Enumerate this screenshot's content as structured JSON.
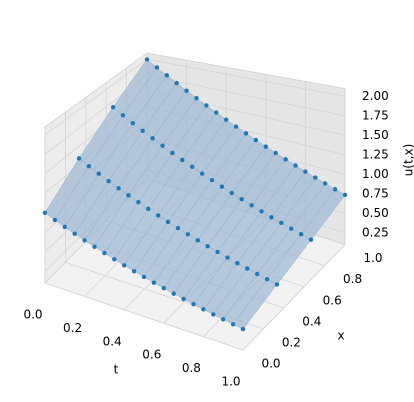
{
  "chart_data": {
    "type": "surface3d",
    "xlabel": "t",
    "ylabel": "x",
    "zlabel": "u(t,x)",
    "t": [
      0,
      0.05,
      0.1,
      0.15,
      0.2,
      0.25,
      0.3,
      0.35,
      0.4,
      0.45,
      0.5,
      0.55,
      0.6,
      0.65,
      0.7,
      0.75,
      0.8,
      0.85,
      0.9,
      0.95,
      1
    ],
    "series": [
      {
        "x": 0,
        "color": "#1f77b4",
        "values": [
          1,
          0.951,
          0.905,
          0.861,
          0.819,
          0.779,
          0.741,
          0.705,
          0.67,
          0.638,
          0.607,
          0.577,
          0.549,
          0.522,
          0.497,
          0.472,
          0.449,
          0.427,
          0.407,
          0.387,
          0.368
        ]
      },
      {
        "x": 0.333,
        "color": "#1f77b4",
        "values": [
          1.333,
          1.268,
          1.207,
          1.148,
          1.092,
          1.039,
          0.988,
          0.94,
          0.894,
          0.851,
          0.809,
          0.769,
          0.732,
          0.696,
          0.662,
          0.63,
          0.599,
          0.57,
          0.542,
          0.516,
          0.491
        ]
      },
      {
        "x": 0.667,
        "color": "#1f77b4",
        "values": [
          1.667,
          1.585,
          1.508,
          1.435,
          1.365,
          1.298,
          1.235,
          1.175,
          1.117,
          1.063,
          1.011,
          0.962,
          0.915,
          0.87,
          0.828,
          0.787,
          0.749,
          0.712,
          0.677,
          0.644,
          0.613
        ]
      },
      {
        "x": 1,
        "color": "#1f77b4",
        "values": [
          2,
          1.902,
          1.81,
          1.722,
          1.638,
          1.558,
          1.482,
          1.41,
          1.341,
          1.275,
          1.213,
          1.154,
          1.098,
          1.044,
          0.993,
          0.945,
          0.899,
          0.855,
          0.813,
          0.774,
          0.736
        ]
      }
    ],
    "surface_color": "#9db8d3",
    "tlim": [
      0,
      1
    ],
    "xlim": [
      0,
      1
    ],
    "zlim": [
      0.1,
      2.1
    ],
    "tticks": [
      {
        "value": 0,
        "label": "0.0"
      },
      0.2,
      0.4,
      0.6,
      0.8,
      {
        "value": 1,
        "label": "1.0"
      }
    ],
    "xticks": [
      {
        "value": 0,
        "label": "0.0"
      },
      0.2,
      0.4,
      0.6,
      0.8,
      {
        "value": 1,
        "label": "1.0"
      }
    ],
    "zticks": [
      0.25,
      {
        "value": 0.5,
        "label": "0.50"
      },
      0.75,
      {
        "value": 1,
        "label": "1.00"
      },
      1.25,
      {
        "value": 1.5,
        "label": "1.50"
      },
      1.75,
      {
        "value": 2,
        "label": "2.00"
      }
    ],
    "grid": true
  }
}
